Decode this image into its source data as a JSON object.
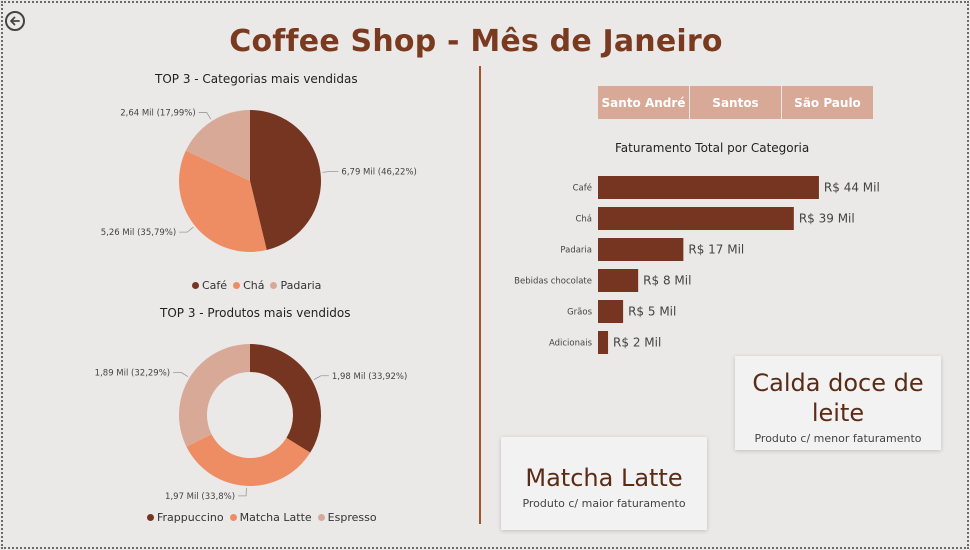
{
  "header": {
    "title": "Coffee Shop - Mês de Janeiro"
  },
  "pie_categorias": {
    "title": "TOP 3 - Categorias mais vendidas",
    "labels": [
      "6,79 Mil (46,22%)",
      "5,26 Mil (35,79%)",
      "2,64 Mil (17,99%)"
    ],
    "legend": [
      "Café",
      "Chá",
      "Padaria"
    ]
  },
  "donut_produtos": {
    "title": "TOP 3 - Produtos mais vendidos",
    "labels": [
      "1,98 Mil (33,92%)",
      "1,97 Mil (33,8%)",
      "1,89 Mil (32,29%)"
    ],
    "legend": [
      "Frappuccino",
      "Matcha Latte",
      "Espresso"
    ]
  },
  "slicer": {
    "options": [
      "Santo André",
      "Santos",
      "São Paulo"
    ]
  },
  "bar_faturamento": {
    "title": "Faturamento Total por Categoria",
    "value_labels": [
      "R$ 44 Mil",
      "R$ 39 Mil",
      "R$ 17 Mil",
      "R$ 8 Mil",
      "R$ 5 Mil",
      "R$ 2 Mil"
    ]
  },
  "card_maior": {
    "value": "Matcha Latte",
    "label": "Produto c/ maior faturamento"
  },
  "card_menor": {
    "value_line1": "Calda doce de",
    "value_line2": "leite",
    "label": "Produto c/ menor faturamento"
  },
  "colors": {
    "dark_brown": "#763520",
    "orange": "#ee8d63",
    "peach": "#d9a998",
    "title_brown": "#7a3a1f",
    "divider": "#a4522a"
  },
  "icons": {
    "back": "arrow-left-circle-icon"
  },
  "chart_data": [
    {
      "type": "pie",
      "title": "TOP 3 - Categorias mais vendidas",
      "categories": [
        "Café",
        "Chá",
        "Padaria"
      ],
      "values": [
        6.79,
        5.26,
        2.64
      ],
      "percentages": [
        46.22,
        35.79,
        17.99
      ],
      "unit": "Mil",
      "legend": "bottom"
    },
    {
      "type": "pie",
      "donut": true,
      "title": "TOP 3 - Produtos mais vendidos",
      "categories": [
        "Frappuccino",
        "Matcha Latte",
        "Espresso"
      ],
      "values": [
        1.98,
        1.97,
        1.89
      ],
      "percentages": [
        33.92,
        33.8,
        32.29
      ],
      "unit": "Mil",
      "legend": "bottom"
    },
    {
      "type": "bar",
      "orientation": "horizontal",
      "title": "Faturamento Total por Categoria",
      "categories": [
        "Café",
        "Chá",
        "Padaria",
        "Bebidas chocolate",
        "Grãos",
        "Adicionais"
      ],
      "values": [
        44,
        39,
        17,
        8,
        5,
        2
      ],
      "unit": "R$ Mil",
      "xlim": [
        0,
        47
      ]
    }
  ]
}
